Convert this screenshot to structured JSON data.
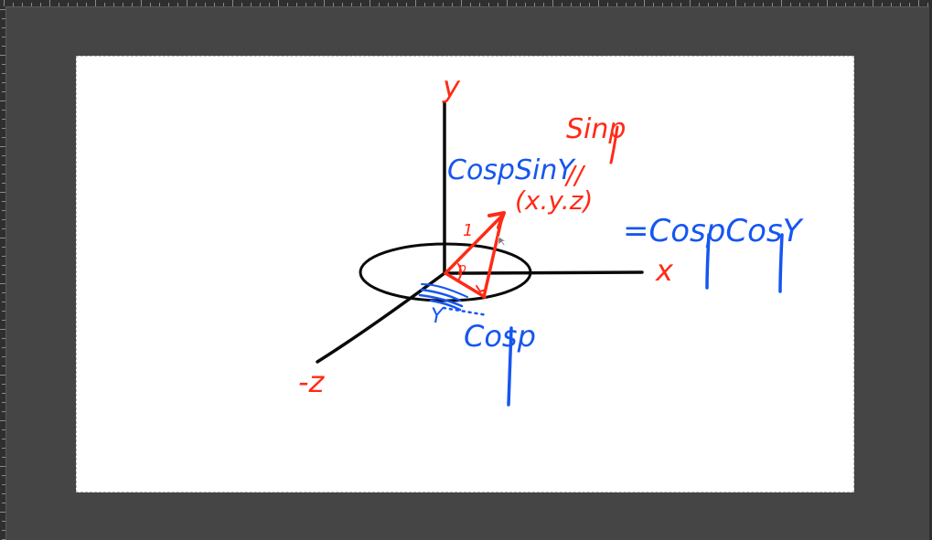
{
  "window": {
    "background_color": "#454545",
    "ruler_color": "#2f2f2f"
  },
  "canvas": {
    "background_color": "#ffffff"
  },
  "drawing": {
    "colors": {
      "red": "#ff2a16",
      "blue": "#1656f0",
      "black": "#0a0a0a"
    },
    "labels": {
      "y_axis": "y",
      "x_axis": "x",
      "neg_z_axis": "-z",
      "sin_phi": "Sinp",
      "parallel_mark": "//",
      "point": "(x.y.z)",
      "equals_cos_cos": "=CospCosY",
      "cos_phi_sin_gamma": "CospSinY",
      "cos_phi": "Cosp",
      "unit_length": "1",
      "phi_angle": "p",
      "gamma_angle": "Y"
    }
  }
}
